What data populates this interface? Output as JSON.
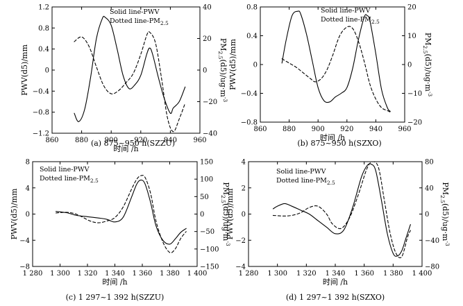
{
  "chart_data": [
    {
      "type": "line",
      "caption": "(a) 875~950 h(SZZU)",
      "xlabel": "时间 /h",
      "ylabel_left": "PWV(d5)/mm",
      "ylabel_right": [
        "PM",
        "2.5",
        "(d5)/ug·m",
        "-3"
      ],
      "legend": [
        "Solid line-PWV",
        "Dotted line-PM",
        "2.5"
      ],
      "legend_position": "top-center",
      "xlim": [
        860,
        960
      ],
      "xticks": [
        860,
        880,
        900,
        920,
        940,
        960
      ],
      "xtick_labels": [
        "860",
        "880",
        "900",
        "920",
        "940",
        "960"
      ],
      "ylim_left": [
        -1.2,
        1.2
      ],
      "yticks_left": [
        -1.2,
        -0.8,
        -0.4,
        0,
        0.4,
        0.8,
        1.2
      ],
      "ytick_labels_left": [
        "−1.2",
        "−0.8",
        "−0.4",
        "0",
        "0.4",
        "0.8",
        "1.2"
      ],
      "ylim_right": [
        -40,
        40
      ],
      "yticks_right": [
        -40,
        -20,
        0,
        20,
        40
      ],
      "ytick_labels_right": [
        "−40",
        "−20",
        "0",
        "20",
        "40"
      ],
      "series": [
        {
          "name": "PWV",
          "style": "solid",
          "axis": "left",
          "x": [
            875,
            878,
            882,
            886,
            890,
            894,
            896,
            900,
            904,
            908,
            912,
            916,
            920,
            924,
            926,
            928,
            932,
            936,
            940,
            942,
            946,
            950
          ],
          "y": [
            -0.82,
            -0.98,
            -0.75,
            -0.15,
            0.6,
            0.98,
            1.0,
            0.85,
            0.4,
            -0.1,
            -0.35,
            -0.28,
            -0.1,
            0.3,
            0.42,
            0.3,
            -0.15,
            -0.55,
            -0.82,
            -0.72,
            -0.6,
            -0.32
          ]
        },
        {
          "name": "PM2.5",
          "style": "dashed",
          "axis": "right",
          "x": [
            875,
            880,
            885,
            890,
            895,
            900,
            905,
            910,
            915,
            920,
            924,
            926,
            930,
            934,
            938,
            942,
            946,
            950
          ],
          "y": [
            18,
            21,
            15,
            2,
            -10,
            -15,
            -13,
            -8,
            -2,
            10,
            22,
            24,
            17,
            -5,
            -30,
            -39,
            -31,
            -21
          ]
        }
      ]
    },
    {
      "type": "line",
      "caption": "(b) 875~950 h(SZXO)",
      "xlabel": "时间 /h",
      "ylabel_left": "PWV(d5)/mm",
      "ylabel_right": [
        "PM",
        "2.5",
        "(d5)/ug·m",
        "-3"
      ],
      "legend": [
        "Solid line-PWV",
        "Dotted line-PM",
        "2.5"
      ],
      "legend_position": "top-right",
      "xlim": [
        860,
        960
      ],
      "xticks": [
        860,
        880,
        900,
        920,
        940,
        960
      ],
      "xtick_labels": [
        "860",
        "880",
        "900",
        "920",
        "940",
        "960"
      ],
      "ylim_left": [
        -0.8,
        0.8
      ],
      "yticks_left": [
        -0.8,
        -0.4,
        0,
        0.4,
        0.8
      ],
      "ytick_labels_left": [
        "−0.8",
        "−0.4",
        "0",
        "0.4",
        "0.8"
      ],
      "ylim_right": [
        -20,
        20
      ],
      "yticks_right": [
        -20,
        -10,
        0,
        10,
        20
      ],
      "ytick_labels_right": [
        "−20",
        "−10",
        "0",
        "10",
        "20"
      ],
      "series": [
        {
          "name": "PWV",
          "style": "solid",
          "axis": "left",
          "x": [
            875,
            878,
            882,
            886,
            888,
            892,
            896,
            900,
            904,
            908,
            912,
            916,
            920,
            924,
            928,
            932,
            934,
            936,
            940,
            944,
            948,
            950
          ],
          "y": [
            0.02,
            0.35,
            0.68,
            0.74,
            0.7,
            0.42,
            0.05,
            -0.32,
            -0.5,
            -0.52,
            -0.45,
            -0.4,
            -0.32,
            -0.05,
            0.35,
            0.66,
            0.68,
            0.6,
            0.15,
            -0.35,
            -0.6,
            -0.65
          ]
        },
        {
          "name": "PM2.5",
          "style": "dashed",
          "axis": "right",
          "x": [
            875,
            880,
            885,
            890,
            895,
            898,
            902,
            906,
            910,
            915,
            920,
            924,
            928,
            932,
            936,
            940,
            944,
            948,
            950
          ],
          "y": [
            2,
            0.5,
            -1,
            -3,
            -5,
            -6,
            -5,
            -2,
            3,
            10,
            13,
            12.5,
            8,
            1,
            -7,
            -12,
            -15,
            -16,
            -16.5
          ]
        }
      ]
    },
    {
      "type": "line",
      "caption": "(c) 1 297~1 392 h(SZZU)",
      "xlabel": "时间 /h",
      "ylabel_left": "PWV(d5)/mm",
      "ylabel_right": [
        "PM",
        "2.5",
        "(d5)/ug·m",
        "-3"
      ],
      "legend": [
        "Solid line-PWV",
        "Dotted line-PM",
        "2.5"
      ],
      "legend_position": "top-left",
      "xlim": [
        1280,
        1400
      ],
      "xticks": [
        1280,
        1300,
        1320,
        1340,
        1360,
        1380,
        1400
      ],
      "xtick_labels": [
        "1 280",
        "1 300",
        "1 320",
        "1 340",
        "1 360",
        "1 380",
        "1 400"
      ],
      "ylim_left": [
        -8,
        8
      ],
      "yticks_left": [
        -8,
        -4,
        0,
        4,
        8
      ],
      "ytick_labels_left": [
        "−8",
        "−4",
        "0",
        "4",
        "8"
      ],
      "ylim_right": [
        -150,
        150
      ],
      "yticks_right": [
        -150,
        -100,
        -50,
        0,
        50,
        100,
        150
      ],
      "ytick_labels_right": [
        "−150",
        "−100",
        "−50",
        "0",
        "50",
        "100",
        "150"
      ],
      "series": [
        {
          "name": "PWV",
          "style": "solid",
          "axis": "left",
          "x": [
            1297,
            1305,
            1312,
            1320,
            1328,
            1334,
            1340,
            1346,
            1352,
            1356,
            1359,
            1362,
            1366,
            1370,
            1375,
            1380,
            1384,
            1388,
            1392
          ],
          "y": [
            0.4,
            0.2,
            -0.2,
            -0.4,
            -0.6,
            -0.8,
            -1.2,
            -0.5,
            2.5,
            4.6,
            5.2,
            4.6,
            1.8,
            -1.8,
            -4.0,
            -4.6,
            -3.8,
            -2.8,
            -2.2
          ]
        },
        {
          "name": "PM2.5",
          "style": "dashed",
          "axis": "right",
          "x": [
            1297,
            1304,
            1310,
            1316,
            1322,
            1328,
            1334,
            1340,
            1346,
            1352,
            1356,
            1359,
            1362,
            1366,
            1370,
            1375,
            1380,
            1384,
            1388,
            1392
          ],
          "y": [
            3,
            5,
            2,
            -8,
            -20,
            -25,
            -20,
            -10,
            20,
            70,
            100,
            110,
            105,
            60,
            -20,
            -80,
            -110,
            -100,
            -70,
            -50
          ]
        }
      ]
    },
    {
      "type": "line",
      "caption": "(d) 1 297~1 392 h(SZXO)",
      "xlabel": "时间 /h",
      "ylabel_left": "PWV(d5)/mm",
      "ylabel_right": [
        "PM",
        "2.5",
        "(d5)/ug·m",
        "-3"
      ],
      "legend": [
        "Solid line-PWV",
        "Dotted line-PM",
        "2.5"
      ],
      "legend_position": "top-left",
      "xlim": [
        1280,
        1400
      ],
      "xticks": [
        1280,
        1300,
        1320,
        1340,
        1360,
        1380,
        1400
      ],
      "xtick_labels": [
        "1 280",
        "1 300",
        "1 320",
        "1 340",
        "1 360",
        "1 380",
        "1 400"
      ],
      "ylim_left": [
        -4,
        4
      ],
      "yticks_left": [
        -4,
        -2,
        0,
        2,
        4
      ],
      "ytick_labels_left": [
        "−4",
        "−2",
        "0",
        "2",
        "4"
      ],
      "ylim_right": [
        -80,
        80
      ],
      "yticks_right": [
        -80,
        -40,
        0,
        40,
        80
      ],
      "ytick_labels_right": [
        "−80",
        "−40",
        "0",
        "40",
        "80"
      ],
      "series": [
        {
          "name": "PWV",
          "style": "solid",
          "axis": "left",
          "x": [
            1297,
            1300,
            1305,
            1310,
            1316,
            1322,
            1328,
            1334,
            1340,
            1346,
            1352,
            1358,
            1362,
            1365,
            1368,
            1372,
            1376,
            1380,
            1383,
            1386,
            1389,
            1392
          ],
          "y": [
            0.4,
            0.6,
            0.8,
            0.6,
            0.3,
            0.0,
            -0.5,
            -1.0,
            -1.5,
            -1.2,
            0.5,
            2.8,
            3.7,
            3.8,
            3.3,
            1.0,
            -1.5,
            -3.0,
            -3.2,
            -2.8,
            -1.8,
            -0.8
          ]
        },
        {
          "name": "PM2.5",
          "style": "dashed",
          "axis": "right",
          "x": [
            1297,
            1304,
            1310,
            1316,
            1322,
            1328,
            1334,
            1338,
            1344,
            1350,
            1356,
            1362,
            1366,
            1370,
            1374,
            1378,
            1382,
            1386,
            1390,
            1392
          ],
          "y": [
            -2,
            -3,
            -2,
            2,
            10,
            12,
            0,
            -15,
            -22,
            -5,
            30,
            70,
            80,
            70,
            20,
            -30,
            -60,
            -65,
            -35,
            -25
          ]
        }
      ]
    }
  ]
}
